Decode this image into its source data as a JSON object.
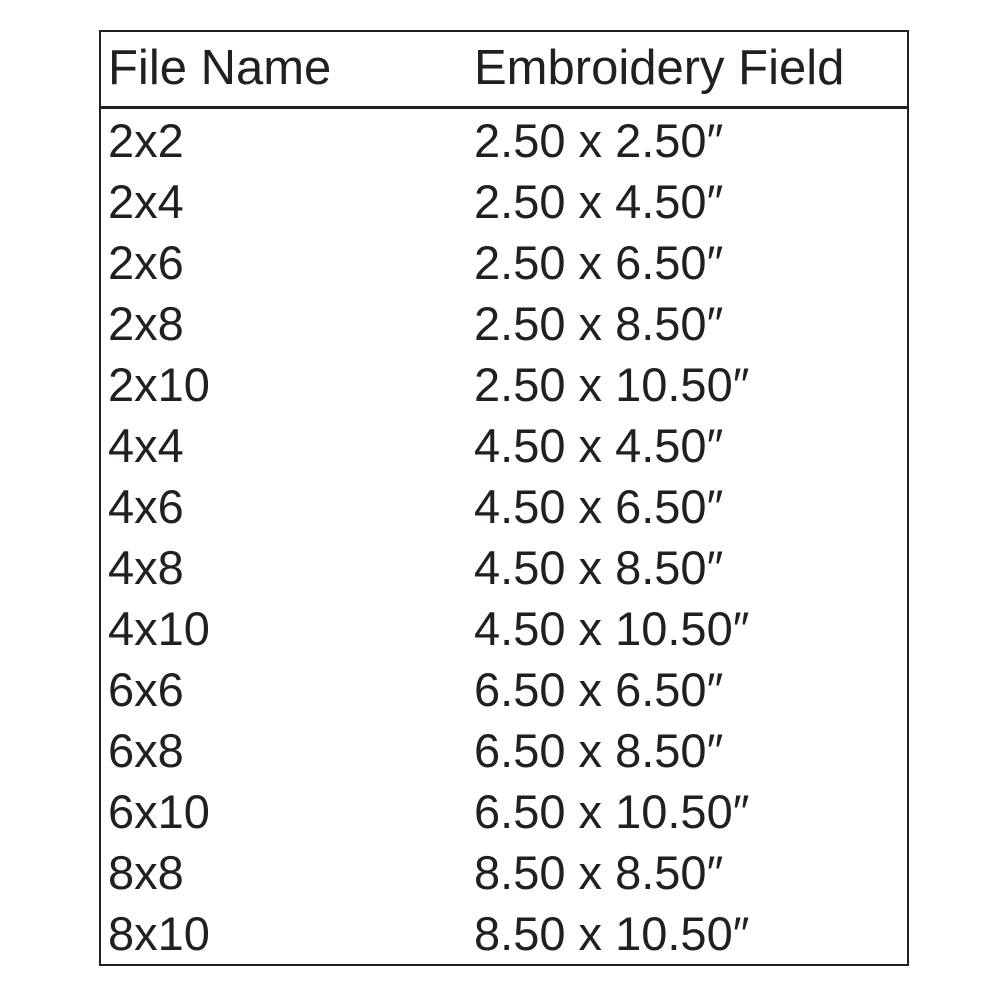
{
  "table": {
    "headers": [
      "File Name",
      "Embroidery Field"
    ],
    "rows": [
      [
        "2x2",
        "2.50 x 2.50″"
      ],
      [
        "2x4",
        "2.50 x 4.50″"
      ],
      [
        "2x6",
        "2.50 x 6.50″"
      ],
      [
        "2x8",
        "2.50 x 8.50″"
      ],
      [
        "2x10",
        "2.50 x 10.50″"
      ],
      [
        "4x4",
        "4.50 x 4.50″"
      ],
      [
        "4x6",
        "4.50 x 6.50″"
      ],
      [
        "4x8",
        "4.50 x 8.50″"
      ],
      [
        "4x10",
        "4.50 x 10.50″"
      ],
      [
        "6x6",
        "6.50 x 6.50″"
      ],
      [
        "6x8",
        "6.50 x 8.50″"
      ],
      [
        "6x10",
        "6.50 x 10.50″"
      ],
      [
        "8x8",
        "8.50 x 8.50″"
      ],
      [
        "8x10",
        "8.50 x 10.50″"
      ]
    ]
  }
}
